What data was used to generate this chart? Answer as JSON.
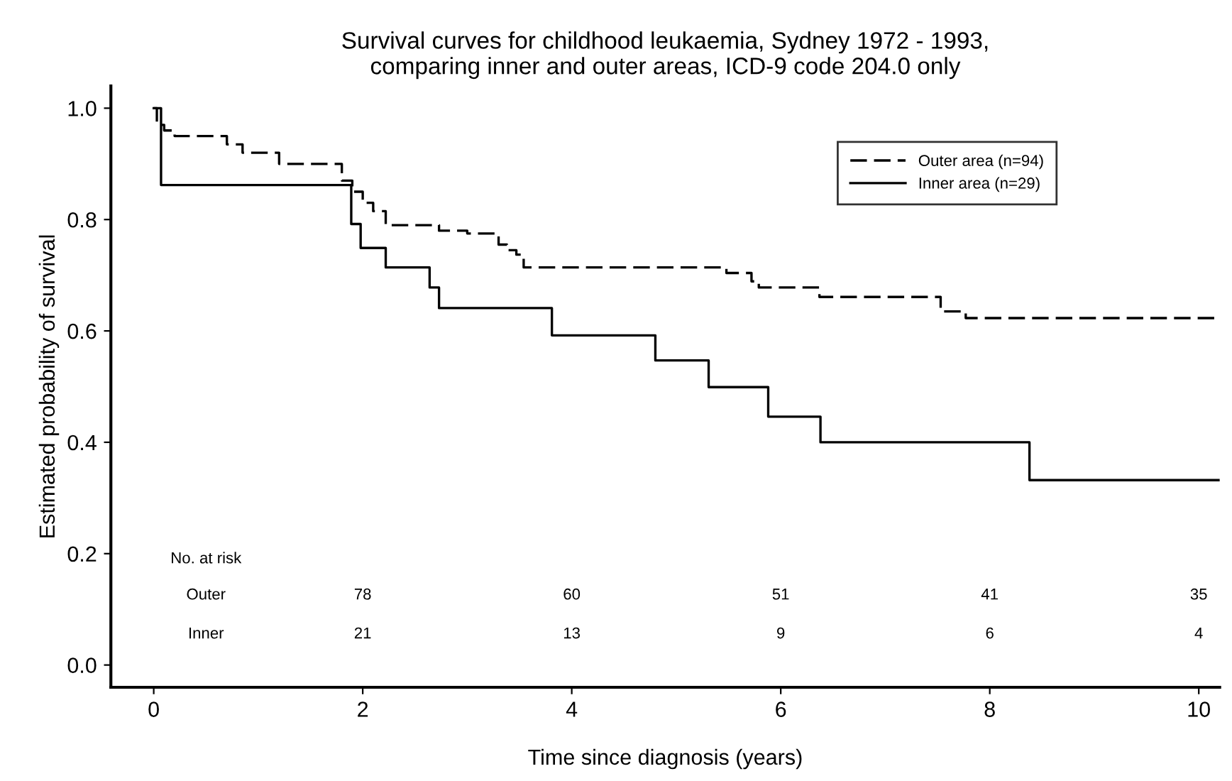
{
  "chart_data": {
    "type": "step",
    "title": "Survival curves for childhood leukaemia, Sydney 1972 - 1993,\ncomparing inner and outer areas, ICD-9 code 204.0 only",
    "xlabel": "Time since diagnosis (years)",
    "ylabel": "Estimated probability of survival",
    "xlim": [
      -0.41,
      10.2
    ],
    "ylim": [
      -0.04,
      1.04
    ],
    "xticks": [
      0,
      2,
      4,
      6,
      8,
      10
    ],
    "yticks": [
      {
        "value": 0,
        "label": "0.0"
      },
      0.2,
      0.4,
      0.6,
      0.8,
      {
        "value": 1,
        "label": "1.0"
      }
    ],
    "grid": false,
    "legend": "top right",
    "marker": "none",
    "series": [
      {
        "name": "Outer area (n=94)",
        "color": "#000000",
        "line_style": "dashed",
        "x": [
          0,
          0.03,
          0.1,
          0.2,
          0.7,
          0.85,
          1.2,
          1.8,
          1.9,
          2.0,
          2.1,
          2.22,
          2.73,
          3.0,
          3.3,
          3.38,
          3.47,
          3.54,
          5.48,
          5.72,
          5.79,
          6.37,
          7.53,
          7.77,
          10.2
        ],
        "values": [
          1.0,
          0.97,
          0.96,
          0.95,
          0.935,
          0.92,
          0.9,
          0.87,
          0.85,
          0.83,
          0.815,
          0.79,
          0.78,
          0.775,
          0.755,
          0.745,
          0.737,
          0.714,
          0.704,
          0.689,
          0.678,
          0.661,
          0.635,
          0.623,
          0.623
        ]
      },
      {
        "name": "Inner area (n=29)",
        "color": "#000000",
        "line_style": "solid",
        "x": [
          0,
          0.07,
          1.89,
          1.98,
          2.22,
          2.64,
          2.73,
          3.81,
          4.8,
          5.31,
          5.88,
          6.38,
          8.38,
          10.2
        ],
        "values": [
          1.0,
          0.862,
          0.792,
          0.749,
          0.714,
          0.678,
          0.641,
          0.592,
          0.547,
          0.499,
          0.446,
          0.4,
          0.332,
          0.332
        ]
      }
    ],
    "annotations": [
      "No. at risk",
      "Outer",
      "78",
      "60",
      "51",
      "41",
      "35",
      "Inner",
      "21",
      "13",
      "9",
      "6",
      "4"
    ]
  }
}
